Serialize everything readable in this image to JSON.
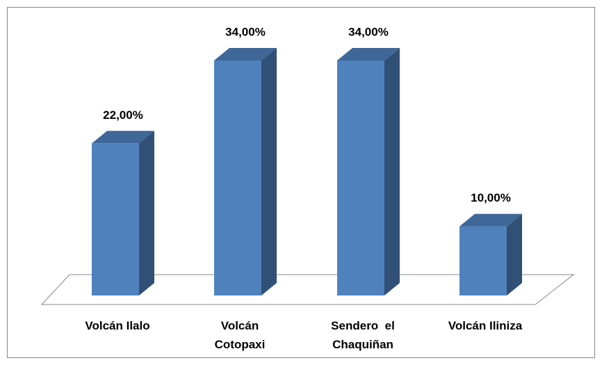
{
  "chart_data": {
    "type": "bar3d",
    "categories": [
      "Volcán Ilalo",
      "Volcán Cotopaxi",
      "Sendero  el Chaquiñan",
      "Volcán Iliniza"
    ],
    "values": [
      22,
      34,
      34,
      10
    ],
    "value_labels": [
      "22,00%",
      "34,00%",
      "34,00%",
      "10,00%"
    ],
    "color": "#4f81bd"
  }
}
